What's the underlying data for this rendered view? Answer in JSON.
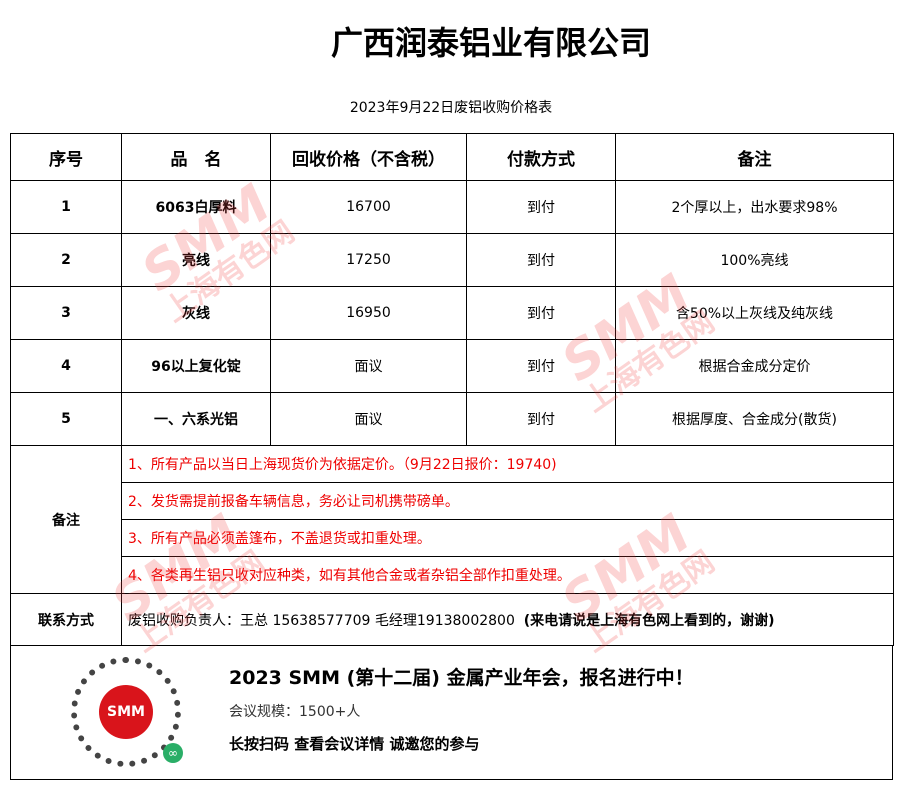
{
  "title": "广西润泰铝业有限公司",
  "subtitle": "2023年9月22日废铝收购价格表",
  "headers": [
    "序号",
    "品　名",
    "回收价格（不含税）",
    "付款方式",
    "备注"
  ],
  "rows": [
    {
      "no": "1",
      "name": "6063白厚料",
      "price": "16700",
      "pay": "到付",
      "note": "2个厚以上，出水要求98%"
    },
    {
      "no": "2",
      "name": "亮线",
      "price": "17250",
      "pay": "到付",
      "note": "100%亮线"
    },
    {
      "no": "3",
      "name": "灰线",
      "price": "16950",
      "pay": "到付",
      "note": "含50%以上灰线及纯灰线"
    },
    {
      "no": "4",
      "name": "96以上复化锭",
      "price": "面议",
      "pay": "到付",
      "note": "根据合金成分定价"
    },
    {
      "no": "5",
      "name": "一、六系光铝",
      "price": "面议",
      "pay": "到付",
      "note": "根据厚度、合金成分(散货)"
    }
  ],
  "notes_label": "备注",
  "notes": [
    "1、所有产品以当日上海现货价为依据定价。（9月22日报价：19740)",
    "2、发货需提前报备车辆信息，务必让司机携带磅单。",
    "3、所有产品必须盖篷布，不盖退货或扣重处理。",
    "4、各类再生铝只收对应种类，如有其他合金或者杂铝全部作扣重处理。"
  ],
  "contact": {
    "label": "联系方式",
    "text": "废铝收购负责人：王总 15638577709 毛经理19138002800",
    "bold": "(来电请说是上海有色网上看到的，谢谢)"
  },
  "banner": {
    "logo": "SMM",
    "title": "2023 SMM (第十二届) 金属产业年会，报名进行中！",
    "scale": "会议规模：1500+人",
    "cta": "长按扫码  查看会议详情   诚邀您的参与"
  },
  "watermark": {
    "brand": "SMM",
    "text": "上海有色网",
    "color": "#f03c3c"
  }
}
